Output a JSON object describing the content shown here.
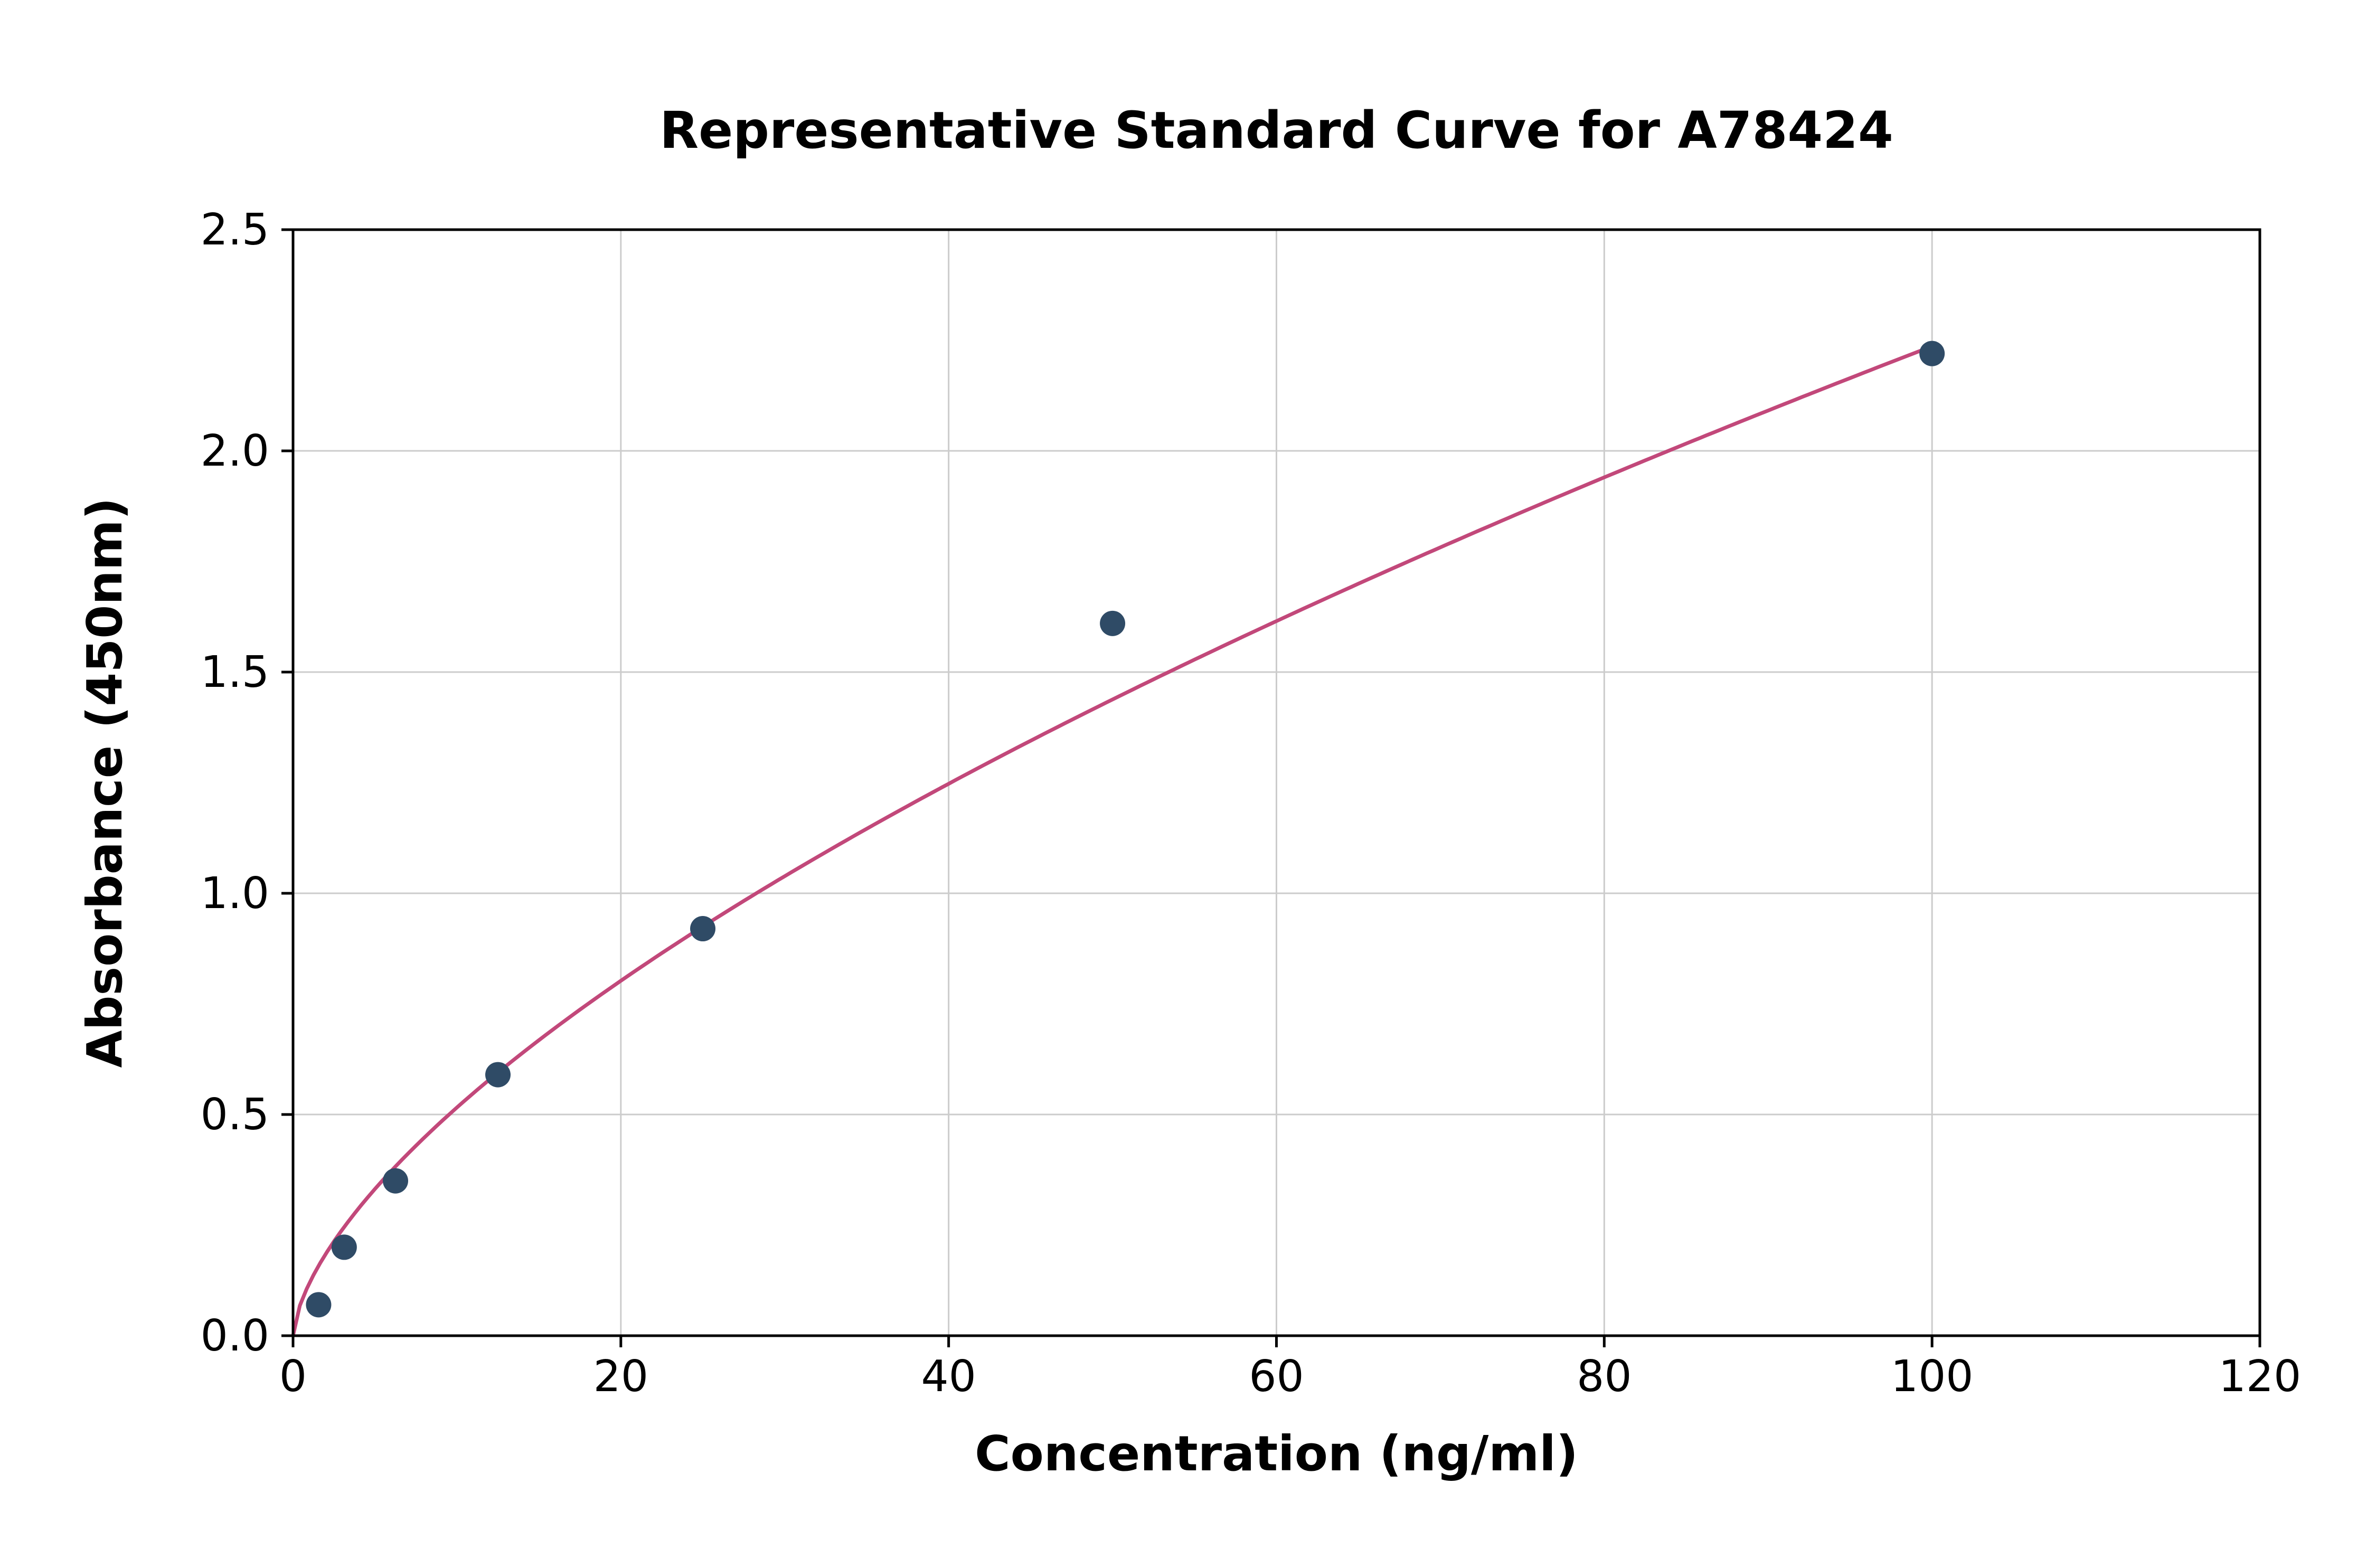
{
  "page": {
    "background": "#ffffff"
  },
  "chart_data": {
    "type": "scatter",
    "title": "Representative Standard Curve for A78424",
    "xlabel": "Concentration (ng/ml)",
    "ylabel": "Absorbance (450nm)",
    "xlim": [
      0,
      120
    ],
    "ylim": [
      0,
      2.5
    ],
    "grid": true,
    "legend": false,
    "x_ticks": [
      {
        "value": 0,
        "label": "0"
      },
      {
        "value": 20,
        "label": "20"
      },
      {
        "value": 40,
        "label": "40"
      },
      {
        "value": 60,
        "label": "60"
      },
      {
        "value": 80,
        "label": "80"
      },
      {
        "value": 100,
        "label": "100"
      },
      {
        "value": 120,
        "label": "120"
      }
    ],
    "y_ticks": [
      {
        "value": 0,
        "label": "0.0"
      },
      {
        "value": 0.5,
        "label": "0.5"
      },
      {
        "value": 1,
        "label": "1.0"
      },
      {
        "value": 1.5,
        "label": "1.5"
      },
      {
        "value": 2,
        "label": "2.0"
      },
      {
        "value": 2.5,
        "label": "2.5"
      }
    ],
    "points": [
      {
        "x": 1.56,
        "y": 0.07
      },
      {
        "x": 3.12,
        "y": 0.2
      },
      {
        "x": 6.25,
        "y": 0.35
      },
      {
        "x": 12.5,
        "y": 0.59
      },
      {
        "x": 25,
        "y": 0.92
      },
      {
        "x": 50,
        "y": 1.61
      },
      {
        "x": 100,
        "y": 2.22
      }
    ],
    "fit_curve": {
      "type": "power",
      "a": 0.119,
      "b": 0.637,
      "x_start": 0,
      "x_end": 100
    },
    "colors": {
      "points": "#2f4b66",
      "curve": "#c2487a",
      "grid": "#cccccc",
      "axis": "#000000",
      "text": "#000000"
    }
  }
}
